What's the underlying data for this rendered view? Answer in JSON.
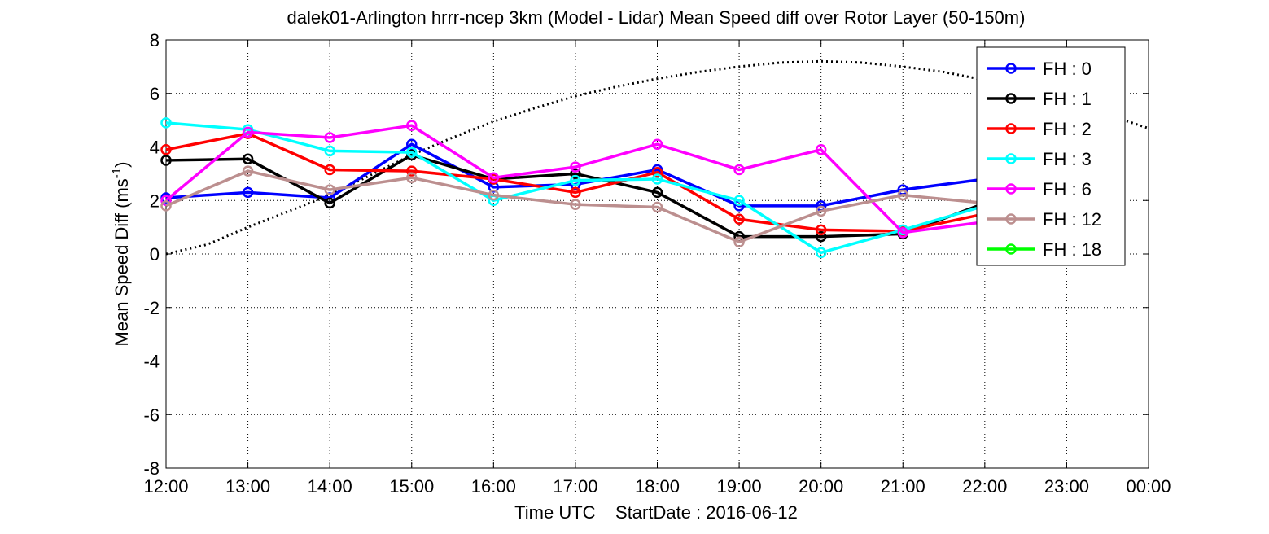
{
  "chart_data": {
    "type": "line",
    "title": "dalek01-Arlington hrrr-ncep 3km (Model - Lidar) Mean Speed diff over Rotor Layer (50-150m)",
    "xlabel": "Time UTC    StartDate : 2016-06-12",
    "ylabel": "Mean Speed Diff (ms",
    "ylabel_sup": "-1",
    "ylabel_end": ")",
    "x_ticks": [
      "12:00",
      "13:00",
      "14:00",
      "15:00",
      "16:00",
      "17:00",
      "18:00",
      "19:00",
      "20:00",
      "21:00",
      "22:00",
      "23:00",
      "00:00"
    ],
    "x": [
      12,
      13,
      14,
      15,
      16,
      17,
      18,
      19,
      20,
      21,
      22,
      23,
      24
    ],
    "xlim": [
      12,
      24
    ],
    "ylim": [
      -8,
      8
    ],
    "y_ticks": [
      8,
      6,
      4,
      2,
      0,
      -2,
      -4,
      -6,
      -8
    ],
    "grid": true,
    "legend_position": "top-right",
    "series": [
      {
        "name": "FH : 0",
        "color": "#0000ff",
        "x": [
          12,
          13,
          14,
          15,
          16,
          17,
          18,
          19,
          20,
          21,
          22
        ],
        "values": [
          2.1,
          2.3,
          2.1,
          4.1,
          2.5,
          2.6,
          3.15,
          1.8,
          1.8,
          2.4,
          2.8
        ]
      },
      {
        "name": "FH : 1",
        "color": "#000000",
        "x": [
          12,
          13,
          14,
          15,
          16,
          17,
          18,
          19,
          20,
          21,
          22
        ],
        "values": [
          3.5,
          3.55,
          1.9,
          3.7,
          2.8,
          3.0,
          2.3,
          0.65,
          0.65,
          0.75,
          1.9
        ]
      },
      {
        "name": "FH : 2",
        "color": "#ff0000",
        "x": [
          12,
          13,
          14,
          15,
          16,
          17,
          18,
          19,
          20,
          21,
          22
        ],
        "values": [
          3.9,
          4.5,
          3.15,
          3.1,
          2.8,
          2.3,
          3.05,
          1.3,
          0.9,
          0.85,
          1.5
        ]
      },
      {
        "name": "FH : 3",
        "color": "#00ffff",
        "x": [
          12,
          13,
          14,
          15,
          16,
          17,
          18,
          19,
          20,
          21,
          22
        ],
        "values": [
          4.9,
          4.65,
          3.85,
          3.8,
          2.0,
          2.75,
          2.8,
          2.0,
          0.05,
          0.9,
          1.8
        ]
      },
      {
        "name": "FH : 6",
        "color": "#ff00ff",
        "x": [
          12,
          13,
          14,
          15,
          16,
          17,
          18,
          19,
          20,
          21,
          22
        ],
        "values": [
          2.0,
          4.55,
          4.35,
          4.8,
          2.85,
          3.25,
          4.1,
          3.15,
          3.9,
          0.8,
          1.2
        ]
      },
      {
        "name": "FH : 12",
        "color": "#bc8f8f",
        "x": [
          12,
          13,
          14,
          15,
          16,
          17,
          18,
          19,
          20,
          21,
          22
        ],
        "values": [
          1.8,
          3.1,
          2.4,
          2.85,
          2.2,
          1.85,
          1.75,
          0.45,
          1.6,
          2.2,
          1.9
        ]
      },
      {
        "name": "FH : 18",
        "color": "#00ff00",
        "x": [],
        "values": []
      }
    ],
    "reference_curve": {
      "style": "dotted",
      "color": "#000000",
      "x": [
        12,
        12.5,
        13,
        13.5,
        14,
        14.5,
        15,
        15.5,
        16,
        16.5,
        17,
        17.5,
        18,
        18.5,
        19,
        19.5,
        20,
        20.5,
        21,
        21.5,
        22,
        22.5,
        23,
        23.5,
        24
      ],
      "values": [
        0.0,
        0.35,
        1.0,
        1.6,
        2.2,
        2.95,
        3.7,
        4.35,
        4.95,
        5.45,
        5.9,
        6.25,
        6.55,
        6.8,
        7.0,
        7.15,
        7.2,
        7.15,
        7.0,
        6.8,
        6.5,
        6.15,
        5.7,
        5.2,
        4.7
      ]
    }
  }
}
